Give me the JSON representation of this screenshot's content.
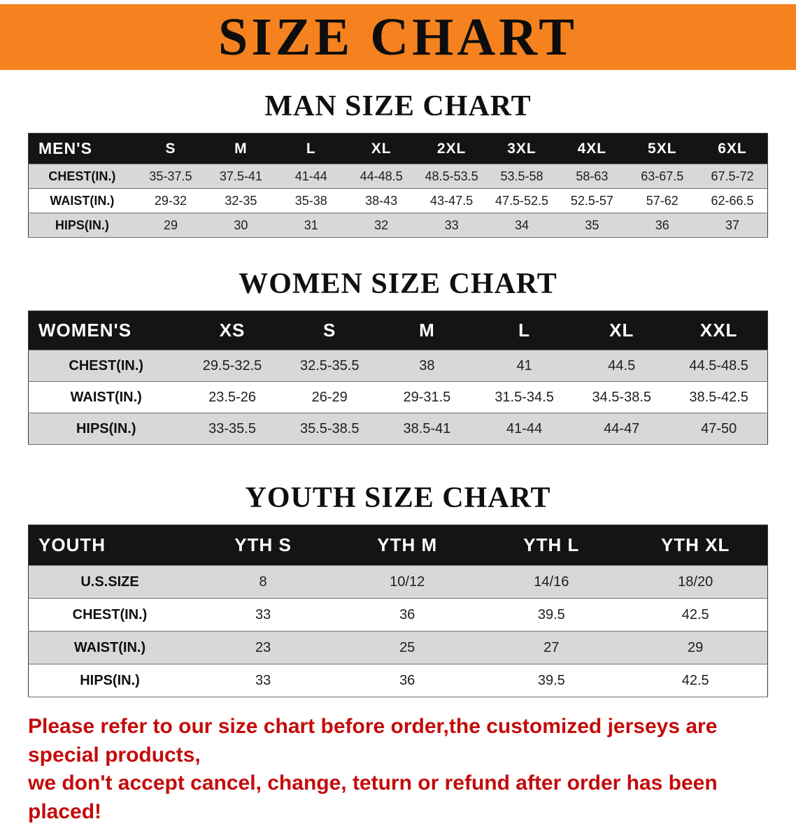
{
  "banner": {
    "title": "SIZE CHART",
    "bg_color": "#f5821f",
    "text_color": "#0d0d0d"
  },
  "sections": [
    {
      "heading": "MAN SIZE CHART",
      "table": {
        "header": [
          "MEN'S",
          "S",
          "M",
          "L",
          "XL",
          "2XL",
          "3XL",
          "4XL",
          "5XL",
          "6XL"
        ],
        "rows": [
          [
            "CHEST(IN.)",
            "35-37.5",
            "37.5-41",
            "41-44",
            "44-48.5",
            "48.5-53.5",
            "53.5-58",
            "58-63",
            "63-67.5",
            "67.5-72"
          ],
          [
            "WAIST(IN.)",
            "29-32",
            "32-35",
            "35-38",
            "38-43",
            "43-47.5",
            "47.5-52.5",
            "52.5-57",
            "57-62",
            "62-66.5"
          ],
          [
            "HIPS(IN.)",
            "29",
            "30",
            "31",
            "32",
            "33",
            "34",
            "35",
            "36",
            "37"
          ]
        ]
      }
    },
    {
      "heading": "WOMEN SIZE CHART",
      "table": {
        "header": [
          "WOMEN'S",
          "XS",
          "S",
          "M",
          "L",
          "XL",
          "XXL"
        ],
        "rows": [
          [
            "CHEST(IN.)",
            "29.5-32.5",
            "32.5-35.5",
            "38",
            "41",
            "44.5",
            "44.5-48.5"
          ],
          [
            "WAIST(IN.)",
            "23.5-26",
            "26-29",
            "29-31.5",
            "31.5-34.5",
            "34.5-38.5",
            "38.5-42.5"
          ],
          [
            "HIPS(IN.)",
            "33-35.5",
            "35.5-38.5",
            "38.5-41",
            "41-44",
            "44-47",
            "47-50"
          ]
        ]
      }
    },
    {
      "heading": "YOUTH SIZE CHART",
      "table": {
        "header": [
          "YOUTH",
          "YTH S",
          "YTH M",
          "YTH L",
          "YTH XL"
        ],
        "rows": [
          [
            "U.S.SIZE",
            "8",
            "10/12",
            "14/16",
            "18/20"
          ],
          [
            "CHEST(IN.)",
            "33",
            "36",
            "39.5",
            "42.5"
          ],
          [
            "WAIST(IN.)",
            "23",
            "25",
            "27",
            "29"
          ],
          [
            "HIPS(IN.)",
            "33",
            "36",
            "39.5",
            "42.5"
          ]
        ]
      }
    }
  ],
  "disclaimer": {
    "line1": "Please refer to our size chart before order,the customized jerseys are special products,",
    "line2": "we don't accept cancel, change, teturn or refund after order has been placed!",
    "text_color": "#c40b0b"
  }
}
